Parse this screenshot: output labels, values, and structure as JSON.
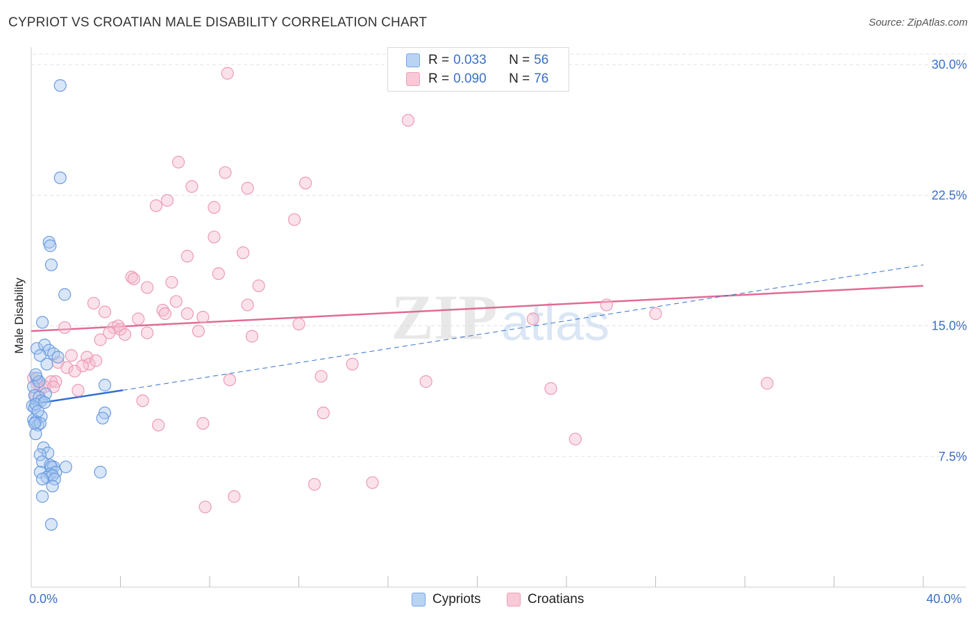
{
  "header": {
    "title": "CYPRIOT VS CROATIAN MALE DISABILITY CORRELATION CHART",
    "source": "Source: ZipAtlas.com"
  },
  "watermark": {
    "zip": "ZIP",
    "atlas": "atlas"
  },
  "legend": {
    "items": [
      {
        "r_label": "R = ",
        "r_value": "0.033",
        "n_label": "N = ",
        "n_value": "56"
      },
      {
        "r_label": "R = ",
        "r_value": "0.090",
        "n_label": "N = ",
        "n_value": "76"
      }
    ]
  },
  "colors": {
    "blue_fill": "#a9c8f0",
    "blue_stroke": "#6b9be0",
    "blue_line": "#2f6fd0",
    "pink_fill": "#f7bfd0",
    "pink_stroke": "#ec9ab5",
    "pink_line": "#e06b94",
    "grid": "#e3e3e3",
    "axis_text": "#3a6fc4"
  },
  "chart_data": {
    "type": "scatter",
    "title": "CYPRIOT VS CROATIAN MALE DISABILITY CORRELATION CHART",
    "xlabel": "",
    "ylabel": "Male Disability",
    "xlim": [
      0,
      40
    ],
    "ylim": [
      0,
      31
    ],
    "x_tick_labels": [
      {
        "value": 0,
        "label": "0.0%"
      },
      {
        "value": 40,
        "label": "40.0%"
      }
    ],
    "y_tick_labels": [
      {
        "value": 7.5,
        "label": "7.5%"
      },
      {
        "value": 15,
        "label": "15.0%"
      },
      {
        "value": 22.5,
        "label": "22.5%"
      },
      {
        "value": 30,
        "label": "30.0%"
      }
    ],
    "grid": true,
    "legend_position": "top-center",
    "series": [
      {
        "name": "Cypriots",
        "R": 0.033,
        "N": 56,
        "trend_solid": [
          [
            0,
            10.5
          ],
          [
            4.1,
            11.3
          ]
        ],
        "trend_dashed": [
          [
            4.1,
            11.3
          ],
          [
            40,
            18.5
          ]
        ],
        "points": [
          [
            1.3,
            28.8
          ],
          [
            1.3,
            23.5
          ],
          [
            0.8,
            19.8
          ],
          [
            0.85,
            19.6
          ],
          [
            0.9,
            18.5
          ],
          [
            1.5,
            16.8
          ],
          [
            0.5,
            15.2
          ],
          [
            0.25,
            13.7
          ],
          [
            0.6,
            13.9
          ],
          [
            0.8,
            13.6
          ],
          [
            1.0,
            13.4
          ],
          [
            0.4,
            13.3
          ],
          [
            0.7,
            12.8
          ],
          [
            0.25,
            12.0
          ],
          [
            0.1,
            11.5
          ],
          [
            0.65,
            11.1
          ],
          [
            3.3,
            11.6
          ],
          [
            0.15,
            11.0
          ],
          [
            0.35,
            10.9
          ],
          [
            0.45,
            10.7
          ],
          [
            0.05,
            10.4
          ],
          [
            0.15,
            10.3
          ],
          [
            0.2,
            10.5
          ],
          [
            3.3,
            10.0
          ],
          [
            3.2,
            9.7
          ],
          [
            0.45,
            9.8
          ],
          [
            0.1,
            9.6
          ],
          [
            0.2,
            9.5
          ],
          [
            0.3,
            9.3
          ],
          [
            0.4,
            9.4
          ],
          [
            0.2,
            8.8
          ],
          [
            0.55,
            8.0
          ],
          [
            0.75,
            7.7
          ],
          [
            0.4,
            7.6
          ],
          [
            0.5,
            7.2
          ],
          [
            0.85,
            7.0
          ],
          [
            1.0,
            6.9
          ],
          [
            0.9,
            6.9
          ],
          [
            1.55,
            6.9
          ],
          [
            0.4,
            6.6
          ],
          [
            0.85,
            6.5
          ],
          [
            0.7,
            6.3
          ],
          [
            1.1,
            6.6
          ],
          [
            0.95,
            6.4
          ],
          [
            3.1,
            6.6
          ],
          [
            0.5,
            6.2
          ],
          [
            1.05,
            6.2
          ],
          [
            0.95,
            5.8
          ],
          [
            0.5,
            5.2
          ],
          [
            0.9,
            3.6
          ],
          [
            0.15,
            9.4
          ],
          [
            0.3,
            10.1
          ],
          [
            0.6,
            10.6
          ],
          [
            1.2,
            13.2
          ],
          [
            0.35,
            11.8
          ],
          [
            0.2,
            12.2
          ]
        ]
      },
      {
        "name": "Croatians",
        "R": 0.09,
        "N": 76,
        "trend_solid": [
          [
            0,
            14.7
          ],
          [
            40,
            17.3
          ]
        ],
        "points": [
          [
            8.8,
            29.5
          ],
          [
            16.9,
            26.8
          ],
          [
            6.6,
            24.4
          ],
          [
            8.7,
            23.8
          ],
          [
            12.3,
            23.2
          ],
          [
            7.2,
            23.0
          ],
          [
            9.7,
            22.9
          ],
          [
            6.1,
            22.2
          ],
          [
            5.6,
            21.9
          ],
          [
            8.2,
            21.8
          ],
          [
            11.8,
            21.1
          ],
          [
            8.2,
            20.1
          ],
          [
            9.5,
            19.2
          ],
          [
            7.0,
            19.0
          ],
          [
            4.5,
            17.8
          ],
          [
            4.6,
            17.7
          ],
          [
            8.4,
            18.0
          ],
          [
            6.3,
            17.5
          ],
          [
            5.2,
            17.2
          ],
          [
            10.2,
            17.3
          ],
          [
            2.8,
            16.3
          ],
          [
            6.5,
            16.4
          ],
          [
            9.7,
            16.2
          ],
          [
            25.8,
            16.2
          ],
          [
            5.9,
            15.9
          ],
          [
            3.3,
            15.8
          ],
          [
            6.0,
            15.7
          ],
          [
            7.0,
            15.7
          ],
          [
            7.7,
            15.5
          ],
          [
            4.8,
            15.4
          ],
          [
            22.5,
            15.4
          ],
          [
            28.0,
            15.7
          ],
          [
            1.5,
            14.9
          ],
          [
            3.7,
            14.9
          ],
          [
            3.9,
            15.0
          ],
          [
            4.0,
            14.8
          ],
          [
            12.0,
            15.1
          ],
          [
            3.5,
            14.6
          ],
          [
            5.2,
            14.6
          ],
          [
            7.5,
            14.7
          ],
          [
            4.2,
            14.5
          ],
          [
            3.1,
            14.2
          ],
          [
            9.9,
            14.4
          ],
          [
            1.8,
            13.3
          ],
          [
            2.5,
            13.2
          ],
          [
            1.2,
            12.9
          ],
          [
            2.6,
            12.8
          ],
          [
            2.3,
            12.7
          ],
          [
            2.9,
            13.0
          ],
          [
            1.6,
            12.6
          ],
          [
            1.95,
            12.4
          ],
          [
            14.4,
            12.8
          ],
          [
            13.0,
            12.1
          ],
          [
            0.3,
            11.8
          ],
          [
            0.9,
            11.8
          ],
          [
            1.1,
            11.8
          ],
          [
            8.9,
            11.9
          ],
          [
            17.7,
            11.8
          ],
          [
            33.0,
            11.7
          ],
          [
            0.6,
            11.5
          ],
          [
            0.4,
            11.3
          ],
          [
            2.1,
            11.3
          ],
          [
            23.3,
            11.4
          ],
          [
            0.2,
            11.0
          ],
          [
            5.0,
            10.7
          ],
          [
            13.1,
            10.0
          ],
          [
            5.7,
            9.3
          ],
          [
            7.7,
            9.4
          ],
          [
            24.4,
            8.5
          ],
          [
            12.7,
            5.9
          ],
          [
            15.3,
            6.0
          ],
          [
            9.1,
            5.2
          ],
          [
            7.8,
            4.6
          ],
          [
            0.1,
            12.0
          ],
          [
            0.25,
            11.7
          ],
          [
            1.0,
            11.5
          ]
        ]
      }
    ]
  },
  "bottom_legend": {
    "items": [
      {
        "label": "Cypriots"
      },
      {
        "label": "Croatians"
      }
    ]
  }
}
